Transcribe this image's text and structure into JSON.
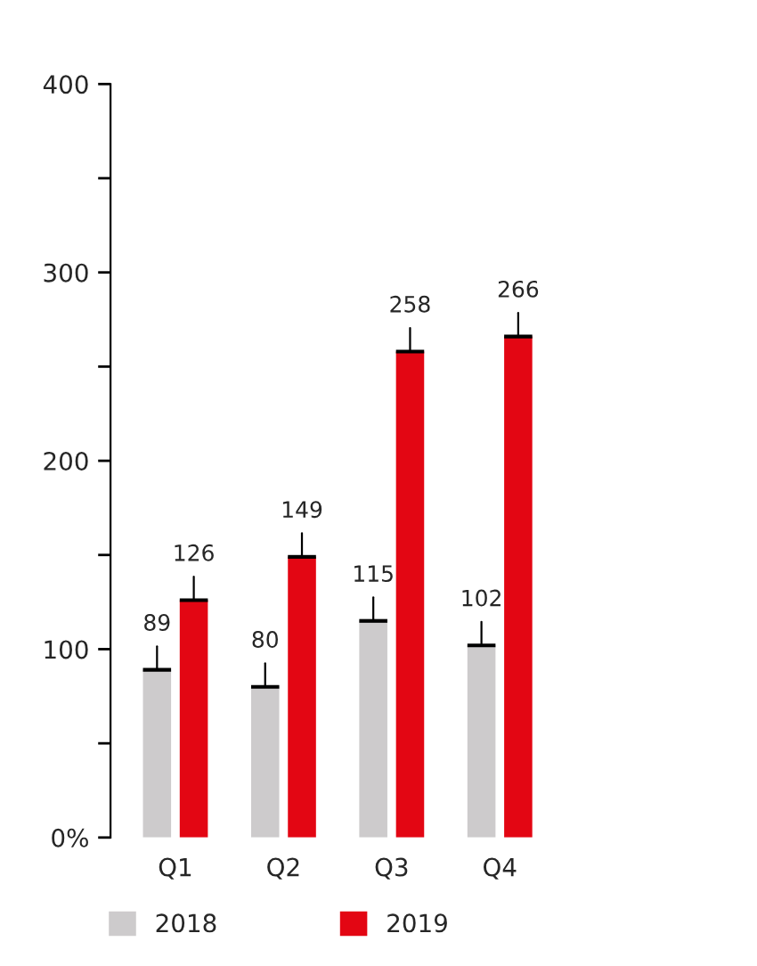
{
  "chart_data": {
    "type": "bar",
    "categories": [
      "Q1",
      "Q2",
      "Q3",
      "Q4"
    ],
    "series": [
      {
        "name": "2018",
        "color": "#cdcbcc",
        "values": [
          89,
          80,
          115,
          102
        ]
      },
      {
        "name": "2019",
        "color": "#e30613",
        "values": [
          126,
          149,
          258,
          266
        ]
      }
    ],
    "ylim": [
      0,
      400
    ],
    "yticks": [
      {
        "value": 0,
        "label": "0%"
      },
      {
        "value": 50,
        "label": null
      },
      100,
      {
        "value": 150,
        "label": null
      },
      200,
      {
        "value": 250,
        "label": null
      },
      300,
      {
        "value": 350,
        "label": null
      },
      400
    ],
    "data_labels": true,
    "grid": false,
    "legend": "bottom"
  }
}
